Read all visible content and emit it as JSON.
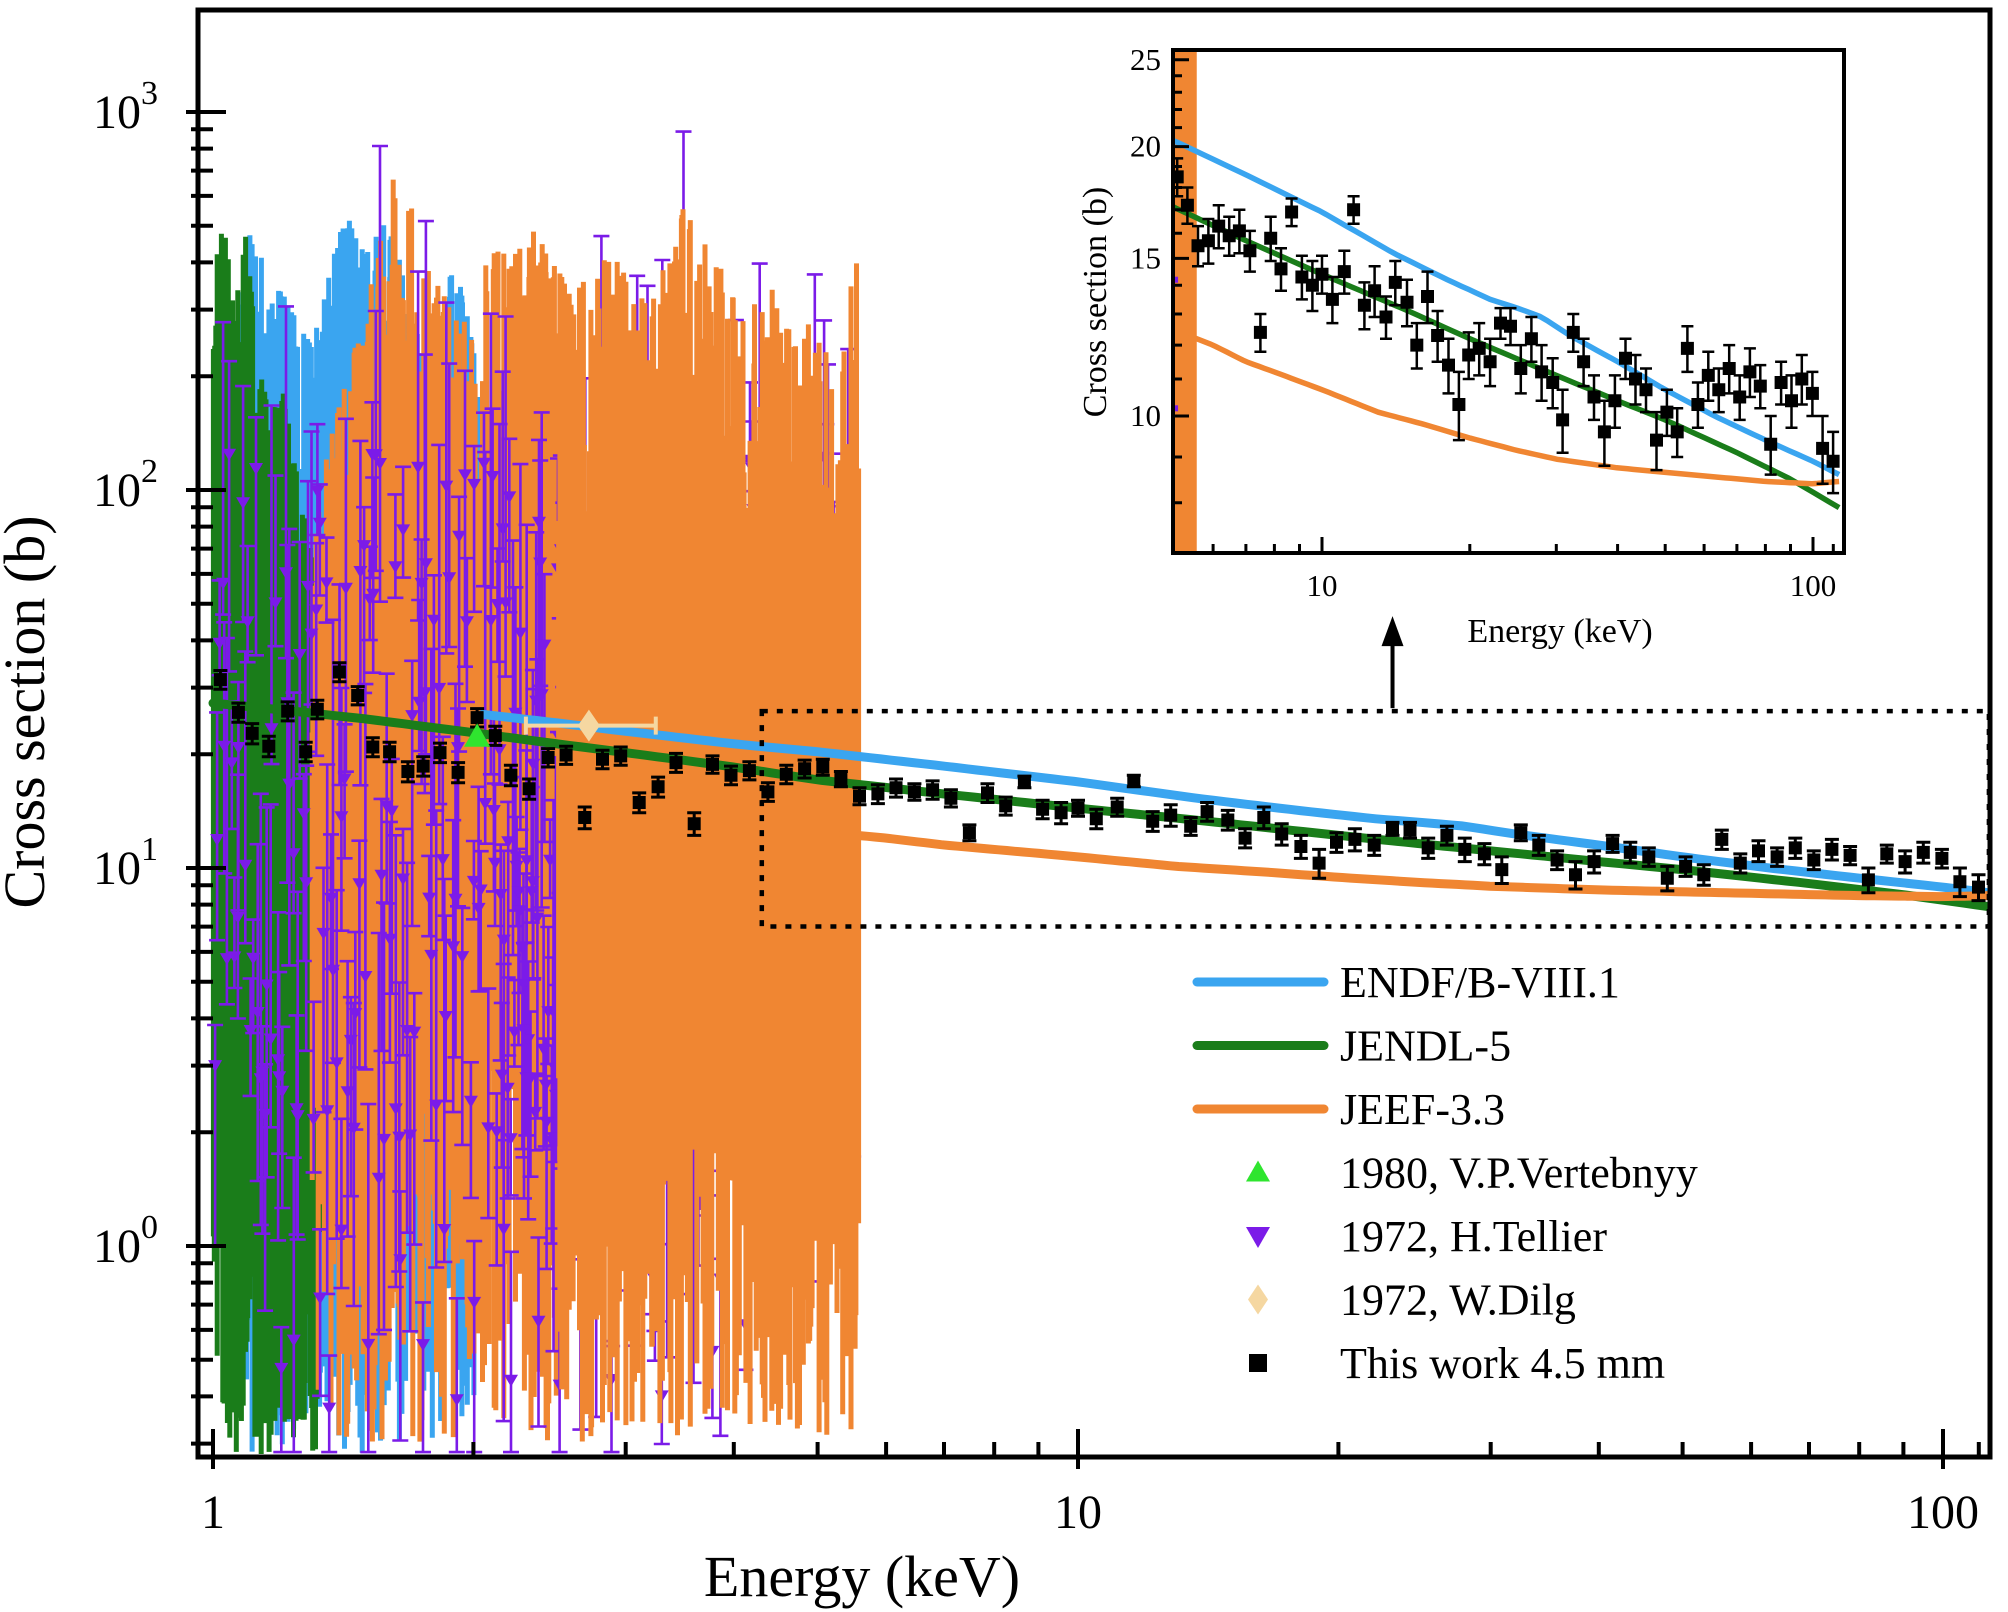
{
  "chart_data": {
    "type": "line",
    "title": "",
    "colors": {
      "endf": "#3AA5F0",
      "jendl": "#1A7D1A",
      "jeff": "#F08632",
      "tellier": "#7B1BE8",
      "vertebnyy": "#2FE52F",
      "dilg": "#F5D7A1",
      "this_work": "#000000",
      "frame": "#000000"
    },
    "main": {
      "xlabel": "Energy (keV)",
      "ylabel": "Cross section (b)",
      "xscale": "log",
      "yscale": "log",
      "xlim": [
        0.96,
        113
      ],
      "ylim": [
        0.277,
        1860
      ],
      "xticks": [
        {
          "v": 1,
          "label": "1"
        },
        {
          "v": 10,
          "label": "10"
        },
        {
          "v": 100,
          "label": "100"
        }
      ],
      "yticks": [
        {
          "v": 1,
          "base": "10",
          "exp": "0"
        },
        {
          "v": 10,
          "base": "10",
          "exp": "1"
        },
        {
          "v": 100,
          "base": "10",
          "exp": "2"
        },
        {
          "v": 1000,
          "base": "10",
          "exp": "3"
        }
      ],
      "grid": false
    },
    "inset": {
      "xlabel": "Energy (keV)",
      "ylabel": "Cross section (b)",
      "xscale": "log",
      "yscale": "log",
      "xlim": [
        4.97,
        115
      ],
      "ylim": [
        7.0,
        25.6
      ],
      "xticks": [
        {
          "v": 10,
          "label": "10"
        },
        {
          "v": 100,
          "label": "100"
        }
      ],
      "yticks": [
        {
          "v": 10,
          "label": "10"
        },
        {
          "v": 15,
          "label": "15"
        },
        {
          "v": 20,
          "label": "20"
        },
        {
          "v": 25,
          "label": "25"
        }
      ],
      "band": {
        "e": [
          5.0,
          5.55
        ],
        "n": 10,
        "seed": 55,
        "top": 25.6,
        "bot": 7.05
      },
      "tellier_slivers": [
        [
          5.02,
          14.2
        ],
        [
          5.02,
          10.2
        ]
      ]
    },
    "zoom_box": {
      "e": [
        4.31,
        113
      ],
      "v": [
        7.0,
        26.0
      ]
    },
    "zoom_arrow": {
      "E": 23.1
    },
    "series": [
      {
        "name": "ENDF/B-VIII.1",
        "colorKey": "endf",
        "line": [
          [
            2.05,
            25.5
          ],
          [
            2.5,
            24.2
          ],
          [
            3,
            23.0
          ],
          [
            4,
            21.3
          ],
          [
            5,
            20.3
          ],
          [
            7,
            18.6
          ],
          [
            10,
            16.9
          ],
          [
            14,
            15.2
          ],
          [
            18,
            14.2
          ],
          [
            22,
            13.5
          ],
          [
            25,
            13.2
          ],
          [
            28,
            12.9
          ],
          [
            32,
            12.3
          ],
          [
            40,
            11.5
          ],
          [
            50,
            10.7
          ],
          [
            63,
            10.0
          ],
          [
            80,
            9.4
          ],
          [
            100,
            8.9
          ],
          [
            113,
            8.6
          ]
        ],
        "band": {
          "seed": 22,
          "n": 260,
          "e": [
            1.04,
            2.08
          ],
          "spikeW": 5,
          "topSpread": 1.0,
          "bot": [
            0.28,
            3
          ],
          "top": [
            [
              1.04,
              150
            ],
            [
              1.1,
              480
            ],
            [
              1.18,
              360
            ],
            [
              1.3,
              240
            ],
            [
              1.42,
              560
            ],
            [
              1.5,
              420
            ],
            [
              1.6,
              540
            ],
            [
              1.7,
              280
            ],
            [
              1.8,
              200
            ],
            [
              1.9,
              430
            ],
            [
              2.0,
              240
            ],
            [
              2.08,
              100
            ]
          ]
        }
      },
      {
        "name": "JENDL-5",
        "colorKey": "jendl",
        "line": [
          [
            1.0,
            27.3
          ],
          [
            1.2,
            26.2
          ],
          [
            1.5,
            24.8
          ],
          [
            2,
            22.8
          ],
          [
            2.5,
            21.3
          ],
          [
            3,
            20.2
          ],
          [
            4,
            18.5
          ],
          [
            5,
            17.1
          ],
          [
            7,
            15.7
          ],
          [
            10,
            14.4
          ],
          [
            15,
            13.1
          ],
          [
            20,
            12.2
          ],
          [
            30,
            11.1
          ],
          [
            40,
            10.4
          ],
          [
            50,
            9.9
          ],
          [
            70,
            9.1
          ],
          [
            90,
            8.5
          ],
          [
            113,
            7.9
          ]
        ],
        "band": {
          "seed": 11,
          "n": 130,
          "e": [
            1.0,
            1.33
          ],
          "spikeW": 5,
          "topSpread": 0.9,
          "bot": [
            0.28,
            2.5
          ],
          "top": [
            [
              1.0,
              420
            ],
            [
              1.03,
              500
            ],
            [
              1.06,
              300
            ],
            [
              1.09,
              480
            ],
            [
              1.12,
              260
            ],
            [
              1.16,
              160
            ],
            [
              1.2,
              200
            ],
            [
              1.25,
              110
            ],
            [
              1.3,
              70
            ],
            [
              1.33,
              55
            ]
          ]
        }
      },
      {
        "name": "JEEF-3.3",
        "colorKey": "jeff",
        "line": [
          [
            5.35,
            12.3
          ],
          [
            6,
            12.0
          ],
          [
            7,
            11.5
          ],
          [
            8,
            11.2
          ],
          [
            10,
            10.7
          ],
          [
            13,
            10.1
          ],
          [
            16,
            9.8
          ],
          [
            20,
            9.45
          ],
          [
            25,
            9.15
          ],
          [
            30,
            8.95
          ],
          [
            40,
            8.75
          ],
          [
            50,
            8.65
          ],
          [
            63,
            8.55
          ],
          [
            80,
            8.45
          ],
          [
            100,
            8.4
          ],
          [
            113,
            8.45
          ]
        ],
        "band": {
          "seed": 33,
          "n": 460,
          "e": [
            1.3,
            5.58
          ],
          "spikeW": 5,
          "topSpread": 1.1,
          "bot": [
            0.3,
            4
          ],
          "split": 0.45,
          "top": [
            [
              1.3,
              90
            ],
            [
              1.5,
              300
            ],
            [
              1.62,
              700
            ],
            [
              1.75,
              480
            ],
            [
              1.9,
              280
            ],
            [
              2.1,
              420
            ],
            [
              2.35,
              500
            ],
            [
              2.6,
              330
            ],
            [
              2.9,
              430
            ],
            [
              3.2,
              300
            ],
            [
              3.5,
              560
            ],
            [
              3.8,
              430
            ],
            [
              4.1,
              280
            ],
            [
              4.4,
              380
            ],
            [
              4.7,
              240
            ],
            [
              5.0,
              300
            ],
            [
              5.3,
              160
            ],
            [
              5.45,
              420
            ],
            [
              5.58,
              520
            ]
          ]
        }
      },
      {
        "name": "1972, H.Tellier",
        "colorKey": "tellier",
        "marker": "triangle-down",
        "cloud": {
          "seed": 44,
          "nLeft": 110,
          "eLeft": [
            1.0,
            2.1
          ],
          "nRight": 270,
          "eRight": [
            2.1,
            5.5
          ],
          "v": [
            1.8,
            125
          ],
          "errUp": [
            0.1,
            0.85
          ],
          "errDn": [
            0.08,
            0.5
          ],
          "capHalf": 8,
          "nLow": 26,
          "eLow": [
            1.15,
            4.2
          ],
          "vLow": [
            0.35,
            1.6
          ]
        }
      },
      {
        "name": "1980, V.P.Vertebnyy",
        "colorKey": "vertebnyy",
        "marker": "triangle-up",
        "points": [
          [
            2.02,
            22.3
          ]
        ]
      },
      {
        "name": "1972, W.Dilg",
        "colorKey": "dilg",
        "marker": "diamond",
        "points": [
          [
            2.72,
            23.8
          ]
        ],
        "xerr": [
          2.3,
          3.25
        ],
        "yerr": 1.2
      },
      {
        "name": "This work 4.5 mm",
        "colorKey": "this_work",
        "marker": "square",
        "points": [
          [
            1.02,
            31.5,
            1.8
          ],
          [
            1.07,
            25.8,
            1.5
          ],
          [
            1.11,
            22.7,
            1.4
          ],
          [
            1.16,
            21.0,
            1.3
          ],
          [
            1.22,
            26.0,
            1.5
          ],
          [
            1.28,
            20.3,
            1.2
          ],
          [
            1.32,
            26.3,
            1.5
          ],
          [
            1.4,
            33.0,
            1.9
          ],
          [
            1.47,
            28.6,
            1.6
          ],
          [
            1.53,
            20.9,
            1.2
          ],
          [
            1.6,
            20.3,
            1.2
          ],
          [
            1.68,
            18.0,
            1.1
          ],
          [
            1.75,
            18.6,
            1.1
          ],
          [
            1.83,
            20.2,
            1.2
          ],
          [
            1.92,
            17.9,
            1.1
          ],
          [
            2.02,
            25.0,
            1.4
          ],
          [
            2.12,
            22.4,
            1.3
          ],
          [
            2.21,
            17.6,
            1.1
          ],
          [
            2.32,
            16.2,
            1.0
          ],
          [
            2.44,
            19.6,
            1.1
          ],
          [
            2.56,
            19.9,
            1.1
          ],
          [
            2.69,
            13.6,
            0.9
          ],
          [
            2.82,
            19.4,
            1.1
          ],
          [
            2.96,
            19.8,
            1.1
          ],
          [
            3.11,
            14.9,
            0.9
          ],
          [
            3.27,
            16.4,
            1.0
          ],
          [
            3.43,
            19.0,
            1.1
          ],
          [
            3.6,
            13.1,
            0.9
          ],
          [
            3.78,
            18.8,
            1.0
          ],
          [
            3.97,
            17.6,
            1.0
          ],
          [
            4.17,
            18.1,
            1.0
          ],
          [
            4.38,
            15.9,
            0.9
          ],
          [
            4.6,
            17.7,
            1.0
          ],
          [
            4.83,
            18.3,
            1.0
          ],
          [
            5.07,
            18.5,
            0.9
          ],
          [
            5.32,
            17.2,
            0.8
          ],
          [
            5.59,
            15.5,
            0.8
          ],
          [
            5.87,
            15.7,
            0.9
          ],
          [
            6.16,
            16.3,
            0.9
          ],
          [
            6.47,
            15.9,
            0.8
          ],
          [
            6.79,
            16.1,
            0.9
          ],
          [
            7.13,
            15.3,
            0.8
          ],
          [
            7.49,
            12.4,
            0.6
          ],
          [
            7.86,
            15.8,
            0.9
          ],
          [
            8.25,
            14.6,
            0.8
          ],
          [
            8.67,
            16.9,
            0.6
          ],
          [
            9.1,
            14.3,
            0.8
          ],
          [
            9.56,
            14.0,
            0.9
          ],
          [
            10.0,
            14.4,
            0.7
          ],
          [
            10.5,
            13.5,
            0.8
          ],
          [
            11.1,
            14.5,
            0.8
          ],
          [
            11.6,
            17.0,
            0.6
          ],
          [
            12.2,
            13.3,
            0.8
          ],
          [
            12.8,
            13.8,
            0.9
          ],
          [
            13.5,
            12.9,
            0.7
          ],
          [
            14.1,
            14.1,
            0.8
          ],
          [
            14.9,
            13.4,
            0.8
          ],
          [
            15.6,
            12.0,
            0.7
          ],
          [
            16.4,
            13.6,
            0.9
          ],
          [
            17.2,
            12.3,
            0.8
          ],
          [
            18.1,
            11.4,
            0.8
          ],
          [
            19.0,
            10.3,
            0.9
          ],
          [
            19.9,
            11.7,
            0.7
          ],
          [
            20.9,
            11.9,
            0.8
          ],
          [
            22.0,
            11.5,
            0.7
          ],
          [
            23.1,
            12.7,
            0.5
          ],
          [
            24.2,
            12.6,
            0.6
          ],
          [
            25.4,
            11.3,
            0.7
          ],
          [
            26.7,
            12.2,
            0.7
          ],
          [
            28.0,
            11.2,
            0.8
          ],
          [
            29.5,
            10.9,
            0.7
          ],
          [
            30.9,
            9.9,
            0.8
          ],
          [
            32.5,
            12.4,
            0.6
          ],
          [
            34.1,
            11.5,
            0.7
          ],
          [
            35.8,
            10.5,
            0.6
          ],
          [
            37.6,
            9.6,
            0.8
          ],
          [
            39.5,
            10.4,
            0.7
          ],
          [
            41.5,
            11.6,
            0.6
          ],
          [
            43.5,
            11.0,
            0.7
          ],
          [
            45.7,
            10.7,
            0.6
          ],
          [
            48.0,
            9.4,
            0.7
          ],
          [
            50.4,
            10.1,
            0.6
          ],
          [
            52.9,
            9.6,
            0.6
          ],
          [
            55.5,
            11.9,
            0.7
          ],
          [
            58.3,
            10.3,
            0.6
          ],
          [
            61.2,
            11.1,
            0.7
          ],
          [
            64.3,
            10.7,
            0.6
          ],
          [
            67.5,
            11.3,
            0.7
          ],
          [
            70.9,
            10.5,
            0.6
          ],
          [
            74.4,
            11.2,
            0.7
          ],
          [
            78.1,
            10.8,
            0.6
          ],
          [
            82.0,
            9.3,
            0.7
          ],
          [
            86.1,
            10.9,
            0.6
          ],
          [
            90.4,
            10.4,
            0.7
          ],
          [
            94.9,
            11.0,
            0.7
          ],
          [
            99.7,
            10.6,
            0.6
          ],
          [
            104.6,
            9.2,
            0.8
          ],
          [
            109.9,
            8.9,
            0.7
          ]
        ]
      }
    ],
    "legend": [
      {
        "label": "ENDF/B-VIII.1",
        "swatch": "line",
        "colorKey": "endf"
      },
      {
        "label": "JENDL-5",
        "swatch": "line",
        "colorKey": "jendl"
      },
      {
        "label": "JEEF-3.3",
        "swatch": "line",
        "colorKey": "jeff"
      },
      {
        "label": "1980, V.P.Vertebnyy",
        "swatch": "triangle-up",
        "colorKey": "vertebnyy"
      },
      {
        "label": "1972, H.Tellier",
        "swatch": "triangle-down",
        "colorKey": "tellier"
      },
      {
        "label": "1972, W.Dilg",
        "swatch": "diamond",
        "colorKey": "dilg"
      },
      {
        "label": "This work 4.5 mm",
        "swatch": "square",
        "colorKey": "this_work"
      }
    ]
  }
}
